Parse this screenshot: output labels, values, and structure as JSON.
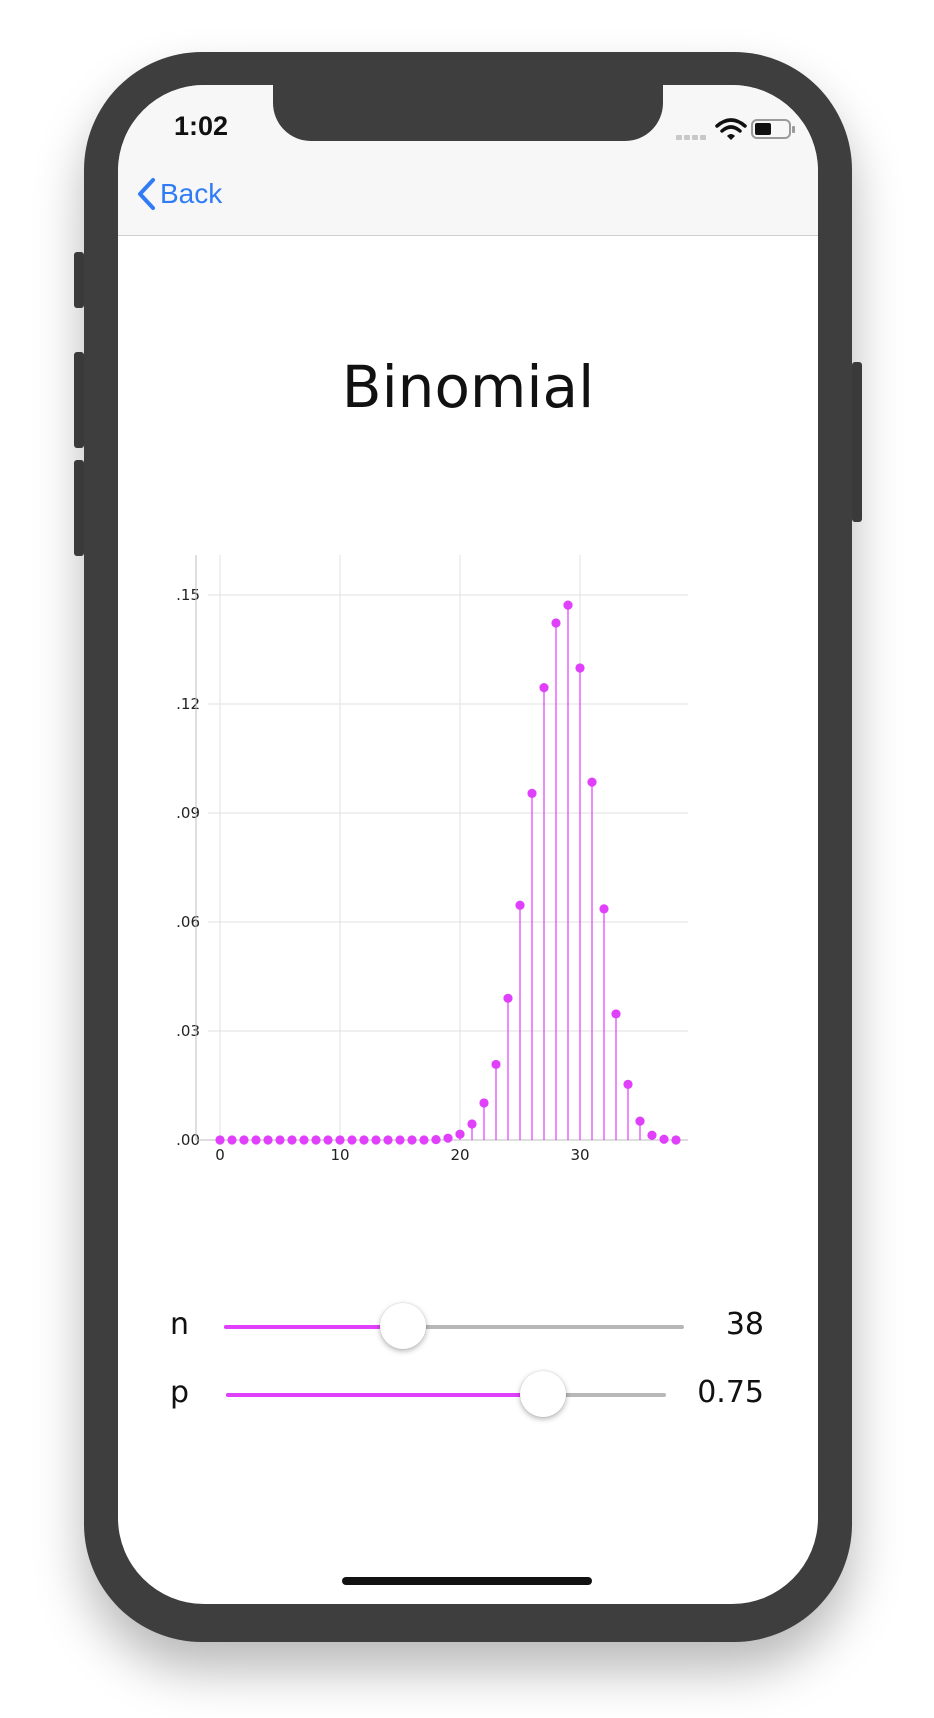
{
  "status": {
    "time": "1:02"
  },
  "nav": {
    "back_label": "Back"
  },
  "page": {
    "title": "Binomial"
  },
  "colors": {
    "accent": "#e040fb",
    "link": "#2f7cf6",
    "grid": "#e0e0e0"
  },
  "chart_data": {
    "type": "scatter",
    "style": "stem",
    "title": "Binomial",
    "xlabel": "",
    "ylabel": "",
    "x_ticks": [
      "0",
      "10",
      "20",
      "30"
    ],
    "y_ticks": [
      ".00",
      ".03",
      ".06",
      ".09",
      ".12",
      ".15"
    ],
    "xlim": [
      -1,
      39
    ],
    "ylim": [
      0,
      0.161
    ],
    "grid": true,
    "x": [
      0,
      1,
      2,
      3,
      4,
      5,
      6,
      7,
      8,
      9,
      10,
      11,
      12,
      13,
      14,
      15,
      16,
      17,
      18,
      19,
      20,
      21,
      22,
      23,
      24,
      25,
      26,
      27,
      28,
      29,
      30,
      31,
      32,
      33,
      34,
      35,
      36,
      37,
      38
    ],
    "values": [
      0,
      0,
      0,
      0,
      0,
      0,
      0,
      0,
      0,
      0,
      0,
      0,
      0,
      0,
      0,
      0,
      0,
      0,
      0.0001,
      0.0005,
      0.0016,
      0.0044,
      0.0102,
      0.0208,
      0.039,
      0.0646,
      0.0954,
      0.1245,
      0.1423,
      0.1472,
      0.1299,
      0.0985,
      0.0636,
      0.0347,
      0.0153,
      0.0052,
      0.0013,
      0.0002,
      0.0
    ]
  },
  "sliders": [
    {
      "label": "n",
      "value": "38",
      "fraction": 0.39
    },
    {
      "label": "p",
      "value": "0.75",
      "fraction": 0.72
    }
  ]
}
